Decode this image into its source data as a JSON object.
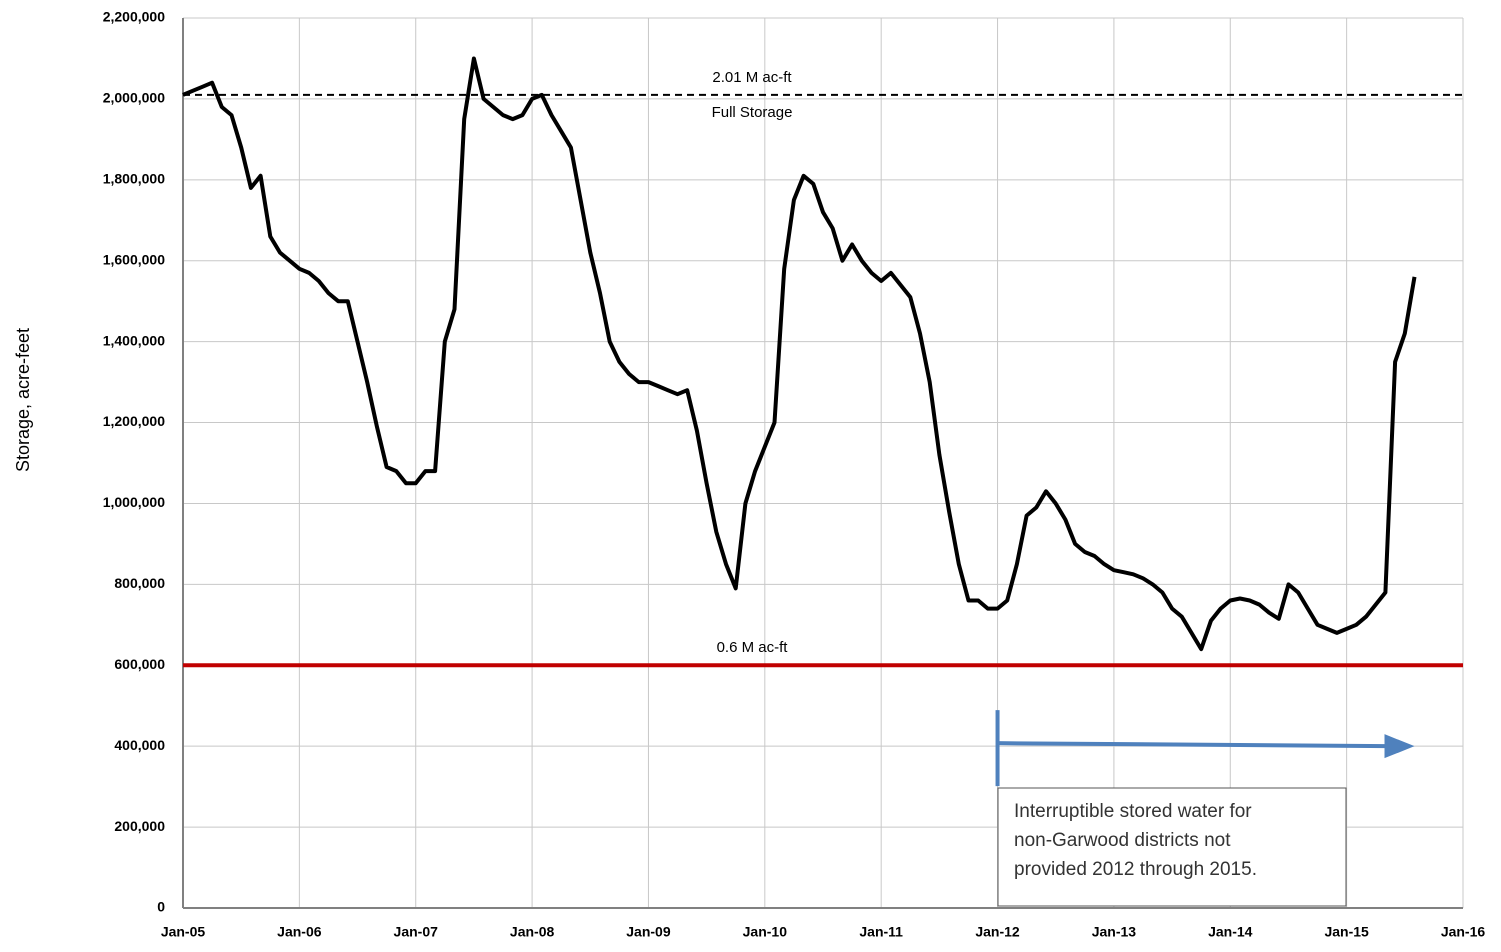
{
  "chart_data": {
    "type": "line",
    "y_label": "Storage, acre-feet",
    "x": [
      "2005-01",
      "2005-02",
      "2005-03",
      "2005-04",
      "2005-05",
      "2005-06",
      "2005-07",
      "2005-08",
      "2005-09",
      "2005-10",
      "2005-11",
      "2005-12",
      "2006-01",
      "2006-02",
      "2006-03",
      "2006-04",
      "2006-05",
      "2006-06",
      "2006-07",
      "2006-08",
      "2006-09",
      "2006-10",
      "2006-11",
      "2006-12",
      "2007-01",
      "2007-02",
      "2007-03",
      "2007-04",
      "2007-05",
      "2007-06",
      "2007-07",
      "2007-08",
      "2007-09",
      "2007-10",
      "2007-11",
      "2007-12",
      "2008-01",
      "2008-02",
      "2008-03",
      "2008-04",
      "2008-05",
      "2008-06",
      "2008-07",
      "2008-08",
      "2008-09",
      "2008-10",
      "2008-11",
      "2008-12",
      "2009-01",
      "2009-02",
      "2009-03",
      "2009-04",
      "2009-05",
      "2009-06",
      "2009-07",
      "2009-08",
      "2009-09",
      "2009-10",
      "2009-11",
      "2009-12",
      "2010-01",
      "2010-02",
      "2010-03",
      "2010-04",
      "2010-05",
      "2010-06",
      "2010-07",
      "2010-08",
      "2010-09",
      "2010-10",
      "2010-11",
      "2010-12",
      "2011-01",
      "2011-02",
      "2011-03",
      "2011-04",
      "2011-05",
      "2011-06",
      "2011-07",
      "2011-08",
      "2011-09",
      "2011-10",
      "2011-11",
      "2011-12",
      "2012-01",
      "2012-02",
      "2012-03",
      "2012-04",
      "2012-05",
      "2012-06",
      "2012-07",
      "2012-08",
      "2012-09",
      "2012-10",
      "2012-11",
      "2012-12",
      "2013-01",
      "2013-02",
      "2013-03",
      "2013-04",
      "2013-05",
      "2013-06",
      "2013-07",
      "2013-08",
      "2013-09",
      "2013-10",
      "2013-11",
      "2013-12",
      "2014-01",
      "2014-02",
      "2014-03",
      "2014-04",
      "2014-05",
      "2014-06",
      "2014-07",
      "2014-08",
      "2014-09",
      "2014-10",
      "2014-11",
      "2014-12",
      "2015-01",
      "2015-02",
      "2015-03",
      "2015-04",
      "2015-05",
      "2015-06",
      "2015-07",
      "2015-08"
    ],
    "series": [
      {
        "color": "#000000",
        "values": [
          2010000,
          2020000,
          2030000,
          2040000,
          1980000,
          1960000,
          1880000,
          1780000,
          1810000,
          1660000,
          1620000,
          1600000,
          1580000,
          1570000,
          1550000,
          1520000,
          1500000,
          1500000,
          1400000,
          1300000,
          1190000,
          1090000,
          1080000,
          1050000,
          1050000,
          1080000,
          1080000,
          1400000,
          1480000,
          1950000,
          2100000,
          2000000,
          1980000,
          1960000,
          1950000,
          1960000,
          2000000,
          2010000,
          1960000,
          1920000,
          1880000,
          1750000,
          1620000,
          1520000,
          1400000,
          1350000,
          1320000,
          1300000,
          1300000,
          1290000,
          1280000,
          1270000,
          1280000,
          1180000,
          1050000,
          930000,
          850000,
          790000,
          1000000,
          1080000,
          1140000,
          1200000,
          1580000,
          1750000,
          1810000,
          1790000,
          1720000,
          1680000,
          1600000,
          1640000,
          1600000,
          1570000,
          1550000,
          1570000,
          1540000,
          1510000,
          1420000,
          1300000,
          1120000,
          980000,
          850000,
          760000,
          760000,
          740000,
          740000,
          760000,
          850000,
          970000,
          990000,
          1030000,
          1000000,
          960000,
          900000,
          880000,
          870000,
          850000,
          835000,
          830000,
          825000,
          815000,
          800000,
          780000,
          740000,
          720000,
          680000,
          640000,
          710000,
          740000,
          760000,
          765000,
          760000,
          750000,
          730000,
          715000,
          800000,
          780000,
          740000,
          700000,
          690000,
          680000,
          690000,
          700000,
          720000,
          750000,
          780000,
          1350000,
          1420000,
          1560000
        ]
      }
    ],
    "xlim": [
      "2005-01",
      "2016-01"
    ],
    "xticks": [
      {
        "value": "2005-01",
        "label": "Jan-05"
      },
      {
        "value": "2006-01",
        "label": "Jan-06"
      },
      {
        "value": "2007-01",
        "label": "Jan-07"
      },
      {
        "value": "2008-01",
        "label": "Jan-08"
      },
      {
        "value": "2009-01",
        "label": "Jan-09"
      },
      {
        "value": "2010-01",
        "label": "Jan-10"
      },
      {
        "value": "2011-01",
        "label": "Jan-11"
      },
      {
        "value": "2012-01",
        "label": "Jan-12"
      },
      {
        "value": "2013-01",
        "label": "Jan-13"
      },
      {
        "value": "2014-01",
        "label": "Jan-14"
      },
      {
        "value": "2015-01",
        "label": "Jan-15"
      },
      {
        "value": "2016-01",
        "label": "Jan-16"
      }
    ],
    "ylim": [
      0,
      2200000
    ],
    "yticks": [
      0,
      {
        "value": 200000,
        "label": "200,000"
      },
      {
        "value": 400000,
        "label": "400,000"
      },
      {
        "value": 600000,
        "label": "600,000"
      },
      {
        "value": 800000,
        "label": "800,000"
      },
      {
        "value": 1000000,
        "label": "1,000,000"
      },
      {
        "value": 1200000,
        "label": "1,200,000"
      },
      {
        "value": 1400000,
        "label": "1,400,000"
      },
      {
        "value": 1600000,
        "label": "1,600,000"
      },
      {
        "value": 1800000,
        "label": "1,800,000"
      },
      {
        "value": 2000000,
        "label": "2,000,000"
      },
      {
        "value": 2200000,
        "label": "2,200,000"
      }
    ],
    "grid": true,
    "reference_lines": [
      {
        "value": 2010000,
        "label": "2.01 M ac-ft",
        "sublabel": "Full Storage",
        "color": "#000000",
        "style": "dashed"
      },
      {
        "value": 600000,
        "label": "0.6 M ac-ft",
        "color": "#c00000",
        "style": "solid"
      }
    ],
    "arrow": {
      "x": [
        "2012-01",
        "2015-08"
      ],
      "y": 400000,
      "color": "#4f81bd"
    },
    "note": [
      "Interruptible stored water for",
      "non-Garwood districts not",
      "provided 2012 through 2015."
    ]
  }
}
